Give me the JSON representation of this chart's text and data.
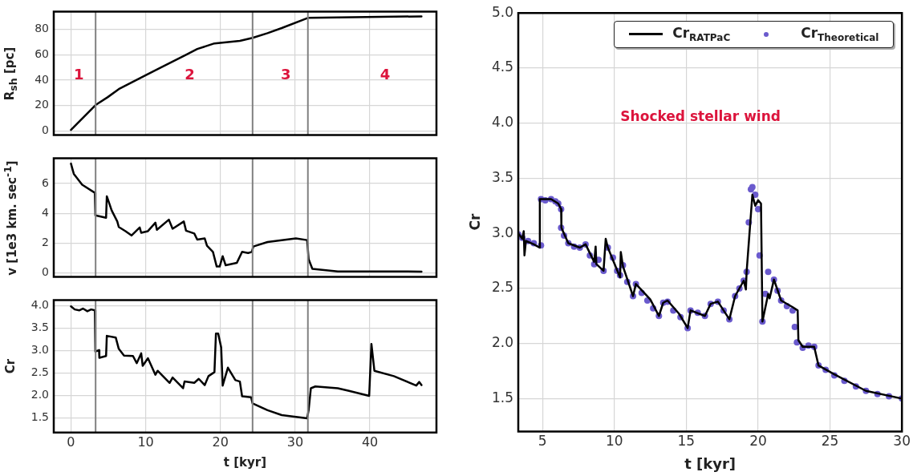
{
  "chart_data": [
    {
      "type": "line",
      "ylabel": "R$_{sh}$ [pc]",
      "xlim": [
        -2.3,
        48.9
      ],
      "ylim": [
        -3.3,
        94
      ],
      "xticks": [
        0,
        10,
        20,
        30,
        40
      ],
      "yticks": [
        0,
        20,
        40,
        60,
        80
      ],
      "grid": true,
      "tick_labels": "y",
      "series": [
        {
          "color": "#000000",
          "x": [
            0,
            3.3,
            4.9,
            6.4,
            10,
            12,
            15.4,
            16.9,
            19.2,
            22.6,
            24.3,
            26.3,
            28.2,
            31.7,
            35.7,
            46.9
          ],
          "values": [
            0.8,
            20.4,
            26.5,
            32.9,
            43.9,
            49.9,
            59.9,
            64.5,
            68.9,
            70.9,
            73.3,
            77,
            81,
            89,
            89.4,
            90.2
          ]
        }
      ],
      "ref_lines": [
        {
          "axis": "x",
          "value": 3.3,
          "color": "#808080"
        },
        {
          "axis": "x",
          "value": 24.3,
          "color": "#808080"
        },
        {
          "axis": "x",
          "value": 31.7,
          "color": "#808080"
        }
      ],
      "annotations": [
        "1",
        "2",
        "3",
        "4"
      ]
    },
    {
      "type": "line",
      "ylabel": "v [1e3 km. sec$^{-1}$]",
      "xlim": [
        -2.3,
        48.9
      ],
      "ylim": [
        -0.26,
        7.7
      ],
      "xticks": [
        0,
        10,
        20,
        30,
        40
      ],
      "yticks": [
        0,
        2,
        4,
        6
      ],
      "grid": true,
      "tick_labels": "y",
      "series": [
        {
          "color": "#000000",
          "x": [
            0,
            0.38,
            1.5,
            3.2,
            3.27,
            4.7,
            4.8,
            5.45,
            6.2,
            6.4,
            7.3,
            8.1,
            9.2,
            9.4,
            10.3,
            11.3,
            11.5,
            13.1,
            13.6,
            15.1,
            15.4,
            16.5,
            16.9,
            17.9,
            18.2,
            19.0,
            19.5,
            19.9,
            20.3,
            20.7,
            22.2,
            22.9,
            23.7,
            24.2,
            24.4,
            26.3,
            30.1,
            31.6,
            31.8,
            32.3,
            35.7,
            46.9
          ],
          "values": [
            7.34,
            6.65,
            5.92,
            5.38,
            3.87,
            3.71,
            5.15,
            4.2,
            3.46,
            3.09,
            2.81,
            2.52,
            3.06,
            2.7,
            2.81,
            3.38,
            2.9,
            3.58,
            2.97,
            3.46,
            2.84,
            2.65,
            2.24,
            2.32,
            1.83,
            1.42,
            0.44,
            0.44,
            1.13,
            0.52,
            0.69,
            1.42,
            1.34,
            1.42,
            1.78,
            2.08,
            2.32,
            2.21,
            0.93,
            0.28,
            0.11,
            0.1
          ]
        }
      ],
      "ref_lines": [
        {
          "axis": "x",
          "value": 3.3,
          "color": "#808080"
        },
        {
          "axis": "x",
          "value": 24.3,
          "color": "#808080"
        },
        {
          "axis": "x",
          "value": 31.7,
          "color": "#808080"
        }
      ]
    },
    {
      "type": "line",
      "xlabel": "t [kyr]",
      "ylabel": "Cr",
      "xlim": [
        -2.3,
        48.9
      ],
      "ylim": [
        1.17,
        4.13
      ],
      "xticks": [
        0,
        10,
        20,
        30,
        40
      ],
      "yticks": [
        1.5,
        {
          "value": 2,
          "label": "2.0"
        },
        2.5,
        {
          "value": 3,
          "label": "3.0"
        },
        3.5,
        {
          "value": 4,
          "label": "4.0"
        }
      ],
      "grid": true,
      "series": [
        {
          "color": "#000000",
          "x": [
            0,
            0.5,
            1.1,
            1.6,
            2.2,
            2.7,
            3.2,
            3.27,
            3.76,
            3.8,
            4.7,
            4.8,
            6.0,
            6.4,
            7.1,
            8.3,
            8.8,
            9.4,
            9.6,
            10.3,
            11.3,
            11.6,
            13.2,
            13.6,
            15.0,
            15.2,
            16.5,
            17.1,
            17.9,
            18.4,
            19.2,
            19.4,
            19.7,
            20.1,
            20.3,
            21.0,
            22.0,
            22.6,
            22.9,
            24.1,
            24.3,
            26.3,
            28.2,
            31.6,
            31.8,
            32.1,
            32.7,
            35.7,
            37.2,
            39.9,
            40.2,
            40.6,
            43.2,
            46.2,
            46.6,
            46.9
          ],
          "values": [
            3.99,
            3.92,
            3.9,
            3.94,
            3.88,
            3.92,
            3.9,
            2.98,
            3.01,
            2.84,
            2.88,
            3.33,
            3.29,
            3.04,
            2.89,
            2.88,
            2.72,
            2.94,
            2.66,
            2.83,
            2.46,
            2.55,
            2.28,
            2.4,
            2.16,
            2.31,
            2.28,
            2.37,
            2.23,
            2.43,
            2.52,
            3.38,
            3.38,
            3.07,
            2.22,
            2.62,
            2.34,
            2.31,
            1.98,
            1.96,
            1.82,
            1.67,
            1.56,
            1.49,
            1.67,
            2.16,
            2.2,
            2.16,
            2.1,
            1.99,
            3.15,
            2.55,
            2.43,
            2.22,
            2.3,
            2.23
          ]
        }
      ],
      "ref_lines": [
        {
          "axis": "x",
          "value": 3.3,
          "color": "#808080"
        },
        {
          "axis": "x",
          "value": 24.3,
          "color": "#808080"
        },
        {
          "axis": "x",
          "value": 31.7,
          "color": "#808080"
        }
      ]
    },
    {
      "type": "line",
      "xlabel": "t [kyr]",
      "ylabel": "Cr",
      "xlim": [
        3.32,
        30
      ],
      "ylim": [
        1.2,
        5
      ],
      "xticks": [
        5,
        10,
        15,
        20,
        25,
        30
      ],
      "yticks": [
        1.5,
        {
          "value": 2,
          "label": "2.0"
        },
        2.5,
        {
          "value": 3,
          "label": "3.0"
        },
        3.5,
        {
          "value": 4,
          "label": "4.0"
        },
        4.5,
        {
          "value": 5,
          "label": "5.0"
        }
      ],
      "grid": true,
      "legend": "top right",
      "series": [
        {
          "name": "Cr$_{RATPaC}$",
          "type": "line",
          "color": "#000000",
          "x": [
            3.32,
            3.6,
            3.7,
            3.75,
            3.85,
            4.4,
            4.8,
            4.82,
            5.6,
            6.1,
            6.3,
            6.32,
            6.8,
            7.6,
            8.0,
            8.6,
            8.7,
            8.75,
            9.25,
            9.4,
            9.55,
            10.4,
            10.45,
            10.6,
            11.3,
            11.5,
            12.5,
            13.1,
            13.4,
            13.7,
            14.5,
            15.1,
            15.3,
            16.3,
            16.7,
            17.2,
            18.0,
            18.4,
            19.0,
            19.15,
            19.2,
            19.6,
            19.8,
            20.0,
            20.2,
            20.3,
            20.7,
            20.8,
            21.1,
            21.6,
            22.4,
            22.75,
            22.8,
            23.1,
            23.9,
            24.2,
            25.3,
            27.5,
            30
          ],
          "values": [
            3.0,
            2.95,
            3.02,
            2.8,
            2.93,
            2.9,
            2.87,
            3.31,
            3.31,
            3.27,
            3.22,
            3.05,
            2.91,
            2.87,
            2.9,
            2.74,
            2.88,
            2.72,
            2.66,
            2.95,
            2.87,
            2.6,
            2.83,
            2.7,
            2.43,
            2.54,
            2.4,
            2.25,
            2.37,
            2.39,
            2.27,
            2.14,
            2.3,
            2.25,
            2.36,
            2.38,
            2.22,
            2.43,
            2.57,
            2.49,
            2.65,
            3.35,
            3.25,
            3.3,
            3.27,
            2.2,
            2.45,
            2.41,
            2.58,
            2.39,
            2.33,
            2.3,
            2.03,
            1.97,
            1.97,
            1.8,
            1.72,
            1.57,
            1.5
          ]
        },
        {
          "name": "Cr$_{Theoretical}$",
          "type": "scatter",
          "marker": "circle",
          "color": "#6a5acd",
          "x": [
            3.32,
            3.6,
            4.0,
            4.4,
            4.9,
            4.9,
            5.2,
            5.6,
            5.9,
            6.1,
            6.3,
            6.3,
            6.5,
            6.8,
            7.2,
            7.6,
            8.0,
            8.3,
            8.6,
            8.9,
            9.25,
            9.55,
            9.9,
            10.2,
            10.4,
            10.6,
            10.9,
            11.3,
            11.5,
            11.9,
            12.3,
            12.7,
            13.1,
            13.4,
            13.7,
            14.1,
            14.6,
            15.1,
            15.3,
            15.8,
            16.3,
            16.7,
            17.2,
            17.6,
            18.0,
            18.4,
            18.7,
            19.0,
            19.2,
            19.35,
            19.5,
            19.6,
            19.8,
            20.0,
            20.1,
            20.3,
            20.5,
            20.7,
            21.1,
            21.35,
            21.6,
            22.0,
            22.4,
            22.55,
            22.7,
            23.1,
            23.5,
            23.9,
            24.2,
            24.7,
            25.3,
            26.0,
            26.8,
            27.5,
            28.3,
            29.1,
            30
          ],
          "values": [
            2.99,
            2.96,
            2.93,
            2.91,
            2.89,
            3.31,
            3.3,
            3.31,
            3.29,
            3.27,
            3.22,
            3.05,
            2.98,
            2.91,
            2.88,
            2.87,
            2.9,
            2.8,
            2.72,
            2.76,
            2.66,
            2.87,
            2.78,
            2.66,
            2.62,
            2.71,
            2.56,
            2.43,
            2.54,
            2.46,
            2.39,
            2.32,
            2.25,
            2.37,
            2.38,
            2.3,
            2.24,
            2.14,
            2.3,
            2.28,
            2.25,
            2.36,
            2.38,
            2.3,
            2.22,
            2.43,
            2.5,
            2.57,
            2.65,
            3.1,
            3.4,
            3.42,
            3.35,
            3.22,
            2.8,
            2.2,
            2.45,
            2.65,
            2.58,
            2.48,
            2.39,
            2.34,
            2.3,
            2.15,
            2.01,
            1.96,
            1.98,
            1.97,
            1.8,
            1.76,
            1.71,
            1.66,
            1.61,
            1.57,
            1.54,
            1.52,
            1.5
          ]
        }
      ],
      "annotations": [
        "Shocked stellar wind"
      ]
    }
  ]
}
